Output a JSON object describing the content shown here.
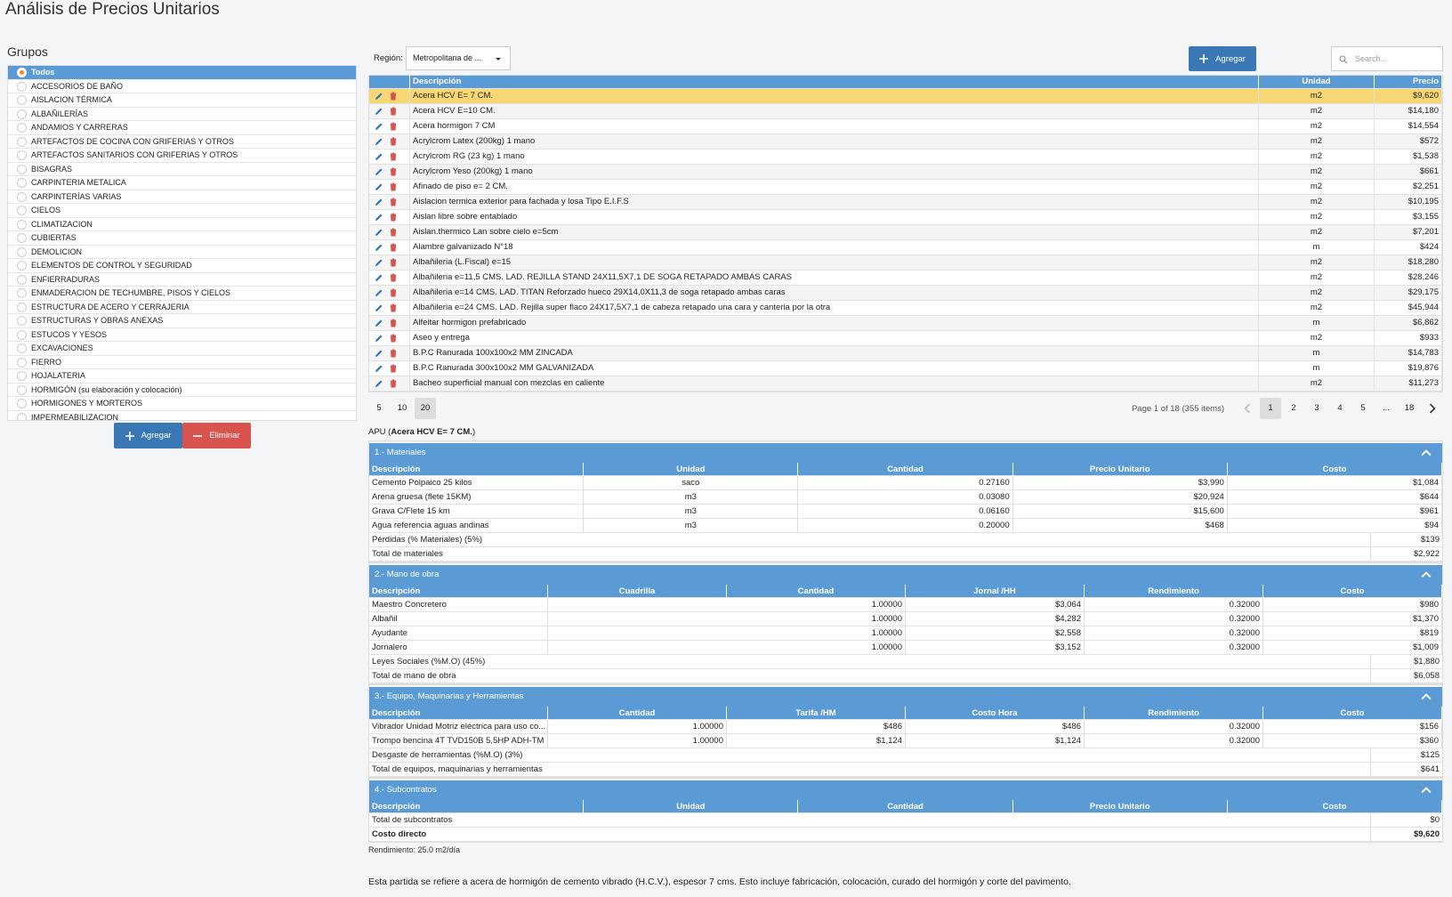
{
  "header": {
    "title": "Análisis de Precios Unitarios"
  },
  "groups": {
    "title": "Grupos",
    "items": [
      "Todos",
      "ACCESORIOS DE BAÑO",
      "AISLACION TÉRMICA",
      "ALBAÑILERÍAS",
      "ANDAMIOS Y CARRERAS",
      "ARTEFACTOS DE COCINA CON GRIFERIAS Y OTROS",
      "ARTEFACTOS SANITARIOS CON GRIFERIAS Y OTROS",
      "BISAGRAS",
      "CARPINTERIA METALICA",
      "CARPINTERÍAS VARIAS",
      "CIELOS",
      "CLIMATIZACION",
      "CUBIERTAS",
      "DEMOLICION",
      "ELEMENTOS DE CONTROL Y SEGURIDAD",
      "ENFIERRADURAS",
      "ENMADERACION DE TECHUMBRE, PISOS Y CIELOS",
      "ESTRUCTURA DE ACERO Y CERRAJERIA",
      "ESTRUCTURAS Y OBRAS ANEXAS",
      "ESTUCOS Y YESOS",
      "EXCAVACIONES",
      "FIERRO",
      "HOJALATERIA",
      "HORMIGÓN (su elaboración y colocación)",
      "HORMIGONES Y MORTEROS",
      "IMPERMEABILIZACION"
    ],
    "add_button": "Agregar",
    "delete_button": "Eliminar"
  },
  "toolbar": {
    "region_label": "Región:",
    "region_value": "Metropolitana de ...",
    "add_button": "Agregar",
    "search_placeholder": "Search..."
  },
  "main_table": {
    "headers": [
      "Descripción",
      "Unidad",
      "Precio"
    ],
    "rows": [
      [
        "Acera HCV E= 7 CM.",
        "m2",
        "$9,620"
      ],
      [
        "Acera HCV E=10 CM.",
        "m2",
        "$14,180"
      ],
      [
        "Acera hormigon 7 CM",
        "m2",
        "$14,554"
      ],
      [
        "Acrylcrom Latex (200kg) 1 mano",
        "m2",
        "$572"
      ],
      [
        "Acrylcrom RG (23 kg) 1 mano",
        "m2",
        "$1,538"
      ],
      [
        "Acrylcrom Yeso (200kg) 1 mano",
        "m2",
        "$661"
      ],
      [
        "Afinado de piso e= 2 CM.",
        "m2",
        "$2,251"
      ],
      [
        "Aislacion termica exterior para fachada y losa Tipo E.I.F.S",
        "m2",
        "$10,195"
      ],
      [
        "Aislan libre sobre entablado",
        "m2",
        "$3,155"
      ],
      [
        "Aislan.thermico Lan sobre cielo e=5cm",
        "m2",
        "$7,201"
      ],
      [
        "Alambre galvanizado N°18",
        "m",
        "$424"
      ],
      [
        "Albañileria (L.Fiscal) e=15",
        "m2",
        "$18,280"
      ],
      [
        "Albañileria e=11,5 CMS. LAD. REJILLA STAND 24X11,5X7,1 DE SOGA RETAPADO AMBAS CARAS",
        "m2",
        "$28,246"
      ],
      [
        "Albañileria e=14 CMS. LAD. TITAN Reforzado hueco 29X14,0X11,3 de soga retapado ambas caras",
        "m2",
        "$29,175"
      ],
      [
        "Albañileria e=24 CMS. LAD. Rejilla super flaco 24X17,5X7,1 de cabeza retapado una cara y canteria por la otra",
        "m2",
        "$45,944"
      ],
      [
        "Alfeitar hormigon prefabricado",
        "m",
        "$6,862"
      ],
      [
        "Aseo y entrega",
        "m2",
        "$933"
      ],
      [
        "B.P.C Ranurada 100x100x2 MM ZINCADA",
        "m",
        "$14,783"
      ],
      [
        "B.P.C Ranurada 300x100x2 MM GALVANIZADA",
        "m",
        "$19,876"
      ],
      [
        "Bacheo superficial manual con mezclas en caliente",
        "m2",
        "$11,273"
      ]
    ]
  },
  "pagination": {
    "sizes": [
      "5",
      "10",
      "20"
    ],
    "info": "Page 1 of 18 (355 items)",
    "pages": [
      "1",
      "2",
      "3",
      "4",
      "5",
      "...",
      "18"
    ]
  },
  "apu": {
    "prefix": "APU (",
    "name": "Acera HCV E= 7 CM.",
    "suffix": ")"
  },
  "sections": [
    {
      "title": "1.- Materiales",
      "headers": [
        "Descripción",
        "Unidad",
        "Cantidad",
        "Precio Unitario",
        "Costo"
      ],
      "rows": [
        [
          "Cemento Polpaico 25 kilos",
          "saco",
          "0.27160",
          "$3,990",
          "$1,084"
        ],
        [
          "Arena gruesa (flete 15KM)",
          "m3",
          "0.03080",
          "$20,924",
          "$644"
        ],
        [
          "Grava C/Flete 15 km",
          "m3",
          "0.06160",
          "$15,600",
          "$961"
        ],
        [
          "Agua referencia aguas andinas",
          "m3",
          "0.20000",
          "$468",
          "$94"
        ]
      ],
      "summary": [
        [
          "Pérdidas (% Materiales) (5%)",
          "$139"
        ],
        [
          "Total de materiales",
          "$2,922"
        ]
      ]
    },
    {
      "title": "2.- Mano de obra",
      "headers": [
        "Descripción",
        "Cuadrilla",
        "Cantidad",
        "Jornal /HH",
        "Rendimiento",
        "Costo"
      ],
      "rows": [
        [
          "Maestro Concretero",
          null,
          "1.00000",
          "$3,064",
          "0.32000",
          "$980"
        ],
        [
          "Albañil",
          null,
          "1.00000",
          "$4,282",
          "0.32000",
          "$1,370"
        ],
        [
          "Ayudante",
          null,
          "1.00000",
          "$2,558",
          "0.32000",
          "$819"
        ],
        [
          "Jornalero",
          null,
          "1.00000",
          "$3,152",
          "0.32000",
          "$1,009"
        ]
      ],
      "summary": [
        [
          "Leyes Sociales (%M.O) (45%)",
          "$1,880"
        ],
        [
          "Total de mano de obra",
          "$6,058"
        ]
      ]
    },
    {
      "title": "3.- Equipo, Maquinarias y Herramientas",
      "headers": [
        "Descripción",
        "Cantidad",
        "Tarifa /HM",
        "Costo Hora",
        "Rendimiento",
        "Costo"
      ],
      "rows": [
        [
          "Vibrador Unidad Motriz eléctrica para uso co...",
          "1.00000",
          "$486",
          "$486",
          "0.32000",
          "$156"
        ],
        [
          "Trompo bencina 4T TVD150B 5,5HP ADH-TM",
          "1.00000",
          "$1,124",
          "$1,124",
          "0.32000",
          "$360"
        ]
      ],
      "summary": [
        [
          "Desgaste de herramientas (%M.O) (3%)",
          "$125"
        ],
        [
          "Total de equipos, maquinarias y herramientas",
          "$641"
        ]
      ]
    },
    {
      "title": "4.- Subcontratos",
      "headers": [
        "Descripción",
        "Unidad",
        "Cantidad",
        "Precio Unitario",
        "Costo"
      ],
      "rows": [],
      "summary": [
        [
          "Total de subcontratos",
          "$0"
        ],
        [
          "Costo directo",
          "$9,620"
        ]
      ]
    }
  ],
  "rendimiento": "Rendimiento: 25.0 m2/día",
  "description": "Esta partida se refiere a acera de hormigón de cemento vibrado (H.C.V.), espesor 7 cms. Esto incluye fabricación, colocación, curado del hormigón y corte del pavimento."
}
